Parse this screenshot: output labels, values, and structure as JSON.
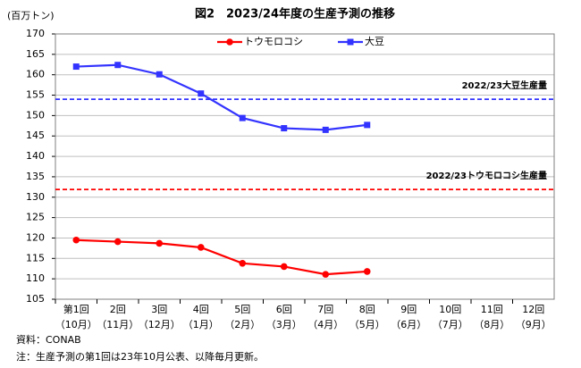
{
  "chart_data": {
    "type": "line",
    "title": "図2　2023/24年度の生産予測の推移",
    "y_label": "(百万トン)",
    "categories": [
      [
        "第1回",
        "（10月）"
      ],
      [
        "2回",
        "（11月）"
      ],
      [
        "3回",
        "（12月）"
      ],
      [
        "4回",
        "（1月）"
      ],
      [
        "5回",
        "（2月）"
      ],
      [
        "6回",
        "（3月）"
      ],
      [
        "7回",
        "（4月）"
      ],
      [
        "8回",
        "（5月）"
      ],
      [
        "9回",
        "（6月）"
      ],
      [
        "10回",
        "（7月）"
      ],
      [
        "11回",
        "（8月）"
      ],
      [
        "12回",
        "（9月）"
      ]
    ],
    "series": [
      {
        "name": "トウモロコシ",
        "color": "#ff0000",
        "marker": "circle",
        "values": [
          119.5,
          119.1,
          118.7,
          117.7,
          113.8,
          113.0,
          111.1,
          111.8,
          null,
          null,
          null,
          null
        ]
      },
      {
        "name": "大豆",
        "color": "#3333ff",
        "marker": "square",
        "values": [
          162.0,
          162.4,
          160.1,
          155.4,
          149.4,
          146.9,
          146.5,
          147.7,
          null,
          null,
          null,
          null
        ]
      }
    ],
    "reference_lines": [
      {
        "label": "2022/23大豆生産量",
        "value": 154.0,
        "color": "#3333ff"
      },
      {
        "label": "2022/23トウモロコシ生産量",
        "value": 131.9,
        "color": "#ff0000"
      }
    ],
    "ylim": [
      105,
      170
    ],
    "yticks": [
      105,
      110,
      115,
      120,
      125,
      130,
      135,
      140,
      145,
      150,
      155,
      160,
      165,
      170
    ],
    "grid": true,
    "legend": "top",
    "notes": [
      "資料：CONAB",
      "注：生産予測の第1回は23年10月公表、以降毎月更新。"
    ]
  }
}
